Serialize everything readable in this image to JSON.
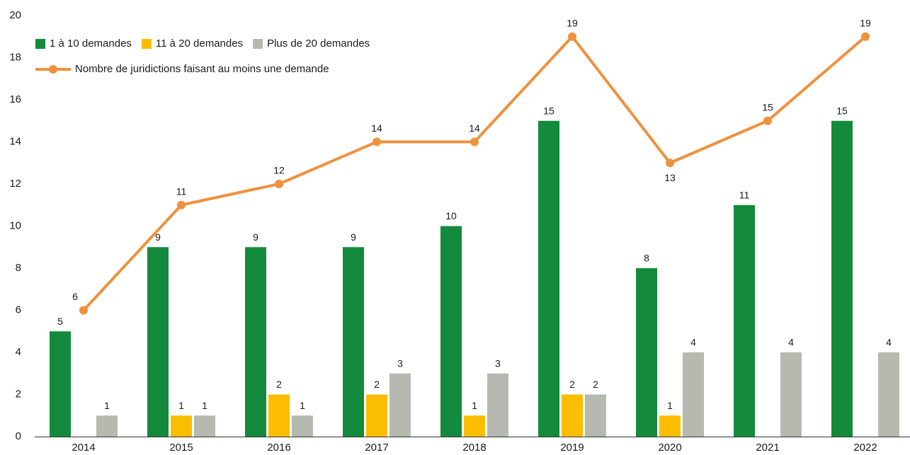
{
  "chart_data": {
    "type": "bar",
    "categories": [
      "2014",
      "2015",
      "2016",
      "2017",
      "2018",
      "2019",
      "2020",
      "2021",
      "2022"
    ],
    "series": [
      {
        "name": "1 à 10 demandes",
        "color": "#138a3c",
        "values": [
          5,
          9,
          9,
          9,
          10,
          15,
          8,
          11,
          15
        ]
      },
      {
        "name": "11 à 20 demandes",
        "color": "#fbbd00",
        "values": [
          null,
          1,
          2,
          2,
          1,
          2,
          1,
          null,
          null
        ]
      },
      {
        "name": "Plus de 20 demandes",
        "color": "#b6b9b0",
        "values": [
          1,
          1,
          1,
          3,
          3,
          2,
          4,
          4,
          4
        ]
      },
      {
        "name": "Nombre de juridictions faisant au moins une demande",
        "color": "#f0913d",
        "type": "line",
        "values": [
          6,
          11,
          12,
          14,
          14,
          19,
          13,
          15,
          19
        ]
      }
    ],
    "ylim": [
      0,
      20
    ],
    "yticks": [
      0,
      2,
      4,
      6,
      8,
      10,
      12,
      14,
      16,
      18,
      20
    ],
    "grid": false,
    "legend": "top-left"
  }
}
